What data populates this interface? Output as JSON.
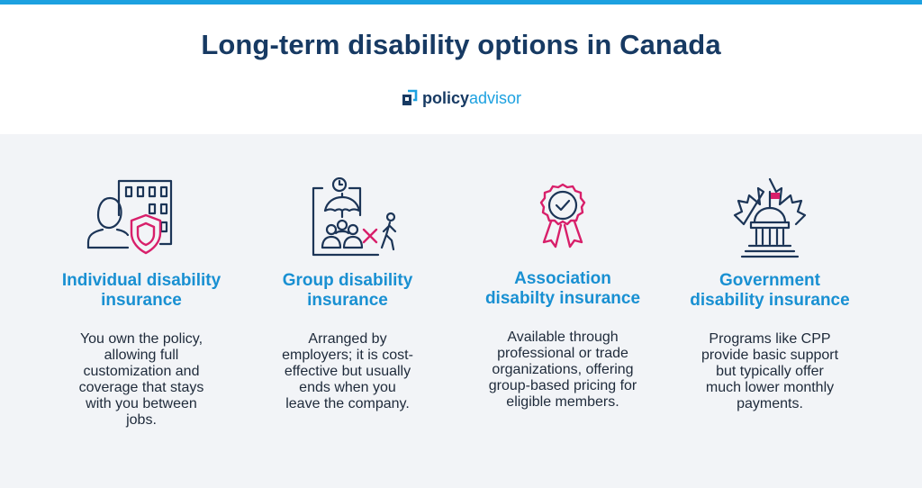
{
  "header": {
    "title": "Long-term disability options in Canada",
    "logo_part1": "policy",
    "logo_part2": "advisor"
  },
  "colors": {
    "navy": "#173a63",
    "accent_blue": "#1990d2",
    "pink": "#d81f6a",
    "panel_bg": "#f2f4f7",
    "top_bar": "#1da1e0"
  },
  "options": [
    {
      "icon": "person-shield-building-icon",
      "title_line1": "Individual disability",
      "title_line2": "insurance",
      "desc": [
        "You own the policy,",
        "allowing full",
        "customization and",
        "coverage that stays",
        "with you between",
        "jobs."
      ]
    },
    {
      "icon": "group-umbrella-exit-icon",
      "title_line1": "Group disability",
      "title_line2": "insurance",
      "desc": [
        "Arranged by",
        "employers; it is cost-",
        "effective but usually",
        "ends when you",
        "leave the company."
      ]
    },
    {
      "icon": "award-ribbon-icon",
      "title_line1": "Association",
      "title_line2": "disabilty insurance",
      "desc": [
        "Available through",
        "professional or trade",
        "organizations, offering",
        "group-based pricing for",
        "eligible members."
      ]
    },
    {
      "icon": "maple-leaf-capitol-icon",
      "title_line1": "Government",
      "title_line2": "disability insurance",
      "desc": [
        "Programs like CPP",
        "provide basic support",
        "but typically offer",
        "much lower monthly",
        "payments."
      ]
    }
  ]
}
